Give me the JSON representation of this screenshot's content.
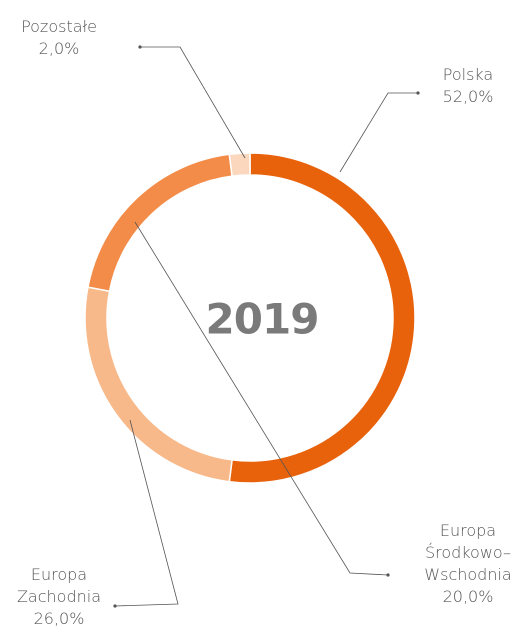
{
  "chart_data": {
    "type": "donut",
    "center_text": "2019",
    "categories": [
      "Polska",
      "Europa Zachodnia",
      "Europa Środkowo–Wschodnia",
      "Pozostałe"
    ],
    "values": [
      52,
      26,
      20,
      2
    ],
    "value_labels": [
      "52,0%",
      "26,0%",
      "20,0%",
      "2,0%"
    ],
    "colors": [
      "#e8620c",
      "#f8b98a",
      "#f28c48",
      "#fbd7bd"
    ]
  }
}
